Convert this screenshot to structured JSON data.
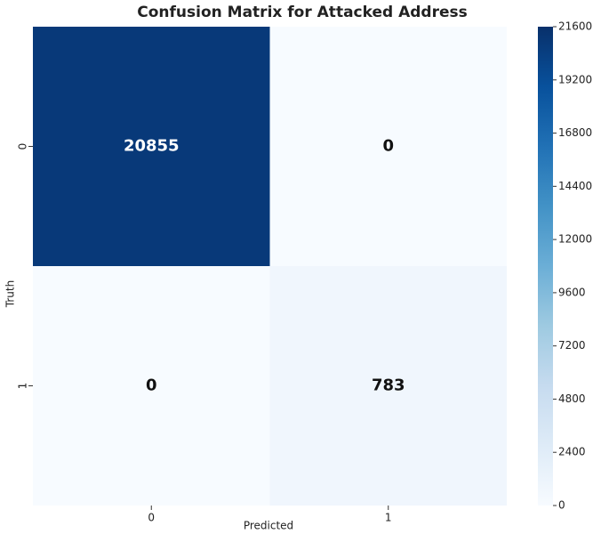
{
  "chart_data": {
    "type": "heatmap",
    "title": "Confusion Matrix for Attacked Address",
    "x_label": "Predicted",
    "y_label": "Truth",
    "x_categories": [
      "0",
      "1"
    ],
    "y_categories": [
      "0",
      "1"
    ],
    "values": [
      [
        20855,
        0
      ],
      [
        0,
        783
      ]
    ],
    "colormap": "Blues",
    "zlim": [
      0,
      21600
    ],
    "zticks": [
      0,
      2400,
      4800,
      7200,
      9600,
      12000,
      14400,
      16800,
      19200,
      21600
    ]
  }
}
